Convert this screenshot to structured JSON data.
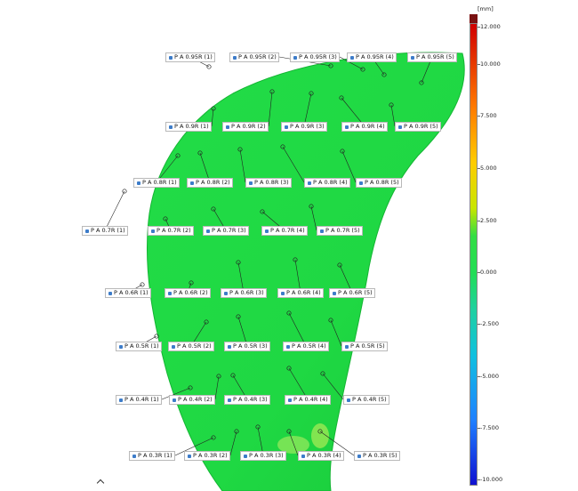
{
  "colorbar": {
    "unit": "[mm]",
    "ticks": [
      "12.000",
      "10.000",
      "7.500",
      "5.000",
      "2.500",
      "0.000",
      "-2.500",
      "-5.000",
      "-7.500",
      "-10.000"
    ]
  },
  "colors": {
    "surface": "#1fd843",
    "surface_edge": "#14b533",
    "label_pin": "#3d7cc9",
    "colorbar_top": "#7a1212"
  },
  "labels": [
    "P A 0.95R (1)",
    "P A 0.95R (2)",
    "P A 0.95R (3)",
    "P A 0.95R (4)",
    "P A 0.95R (5)",
    "P A 0.9R (1)",
    "P A 0.9R (2)",
    "P A 0.9R (3)",
    "P A 0.9R (4)",
    "P A 0.9R (5)",
    "P A 0.8R (1)",
    "P A 0.8R (2)",
    "P A 0.8R (3)",
    "P A 0.8R (4)",
    "P A 0.8R (5)",
    "P A 0.7R (1)",
    "P A 0.7R (2)",
    "P A 0.7R (3)",
    "P A 0.7R (4)",
    "P A 0.7R (5)",
    "P A 0.6R (1)",
    "P A 0.6R (2)",
    "P A 0.6R (3)",
    "P A 0.6R (4)",
    "P A 0.6R (5)",
    "P A 0.5R (1)",
    "P A 0.5R (2)",
    "P A 0.5R (3)",
    "P A 0.5R (4)",
    "P A 0.5R (5)",
    "P A 0.4R (1)",
    "P A 0.4R (2)",
    "P A 0.4R (3)",
    "P A 0.4R (4)",
    "P A 0.4R (5)",
    "P A 0.3R (1)",
    "P A 0.3R (2)",
    "P A 0.3R (3)",
    "P A 0.3R (4)",
    "P A 0.3R (5)"
  ]
}
